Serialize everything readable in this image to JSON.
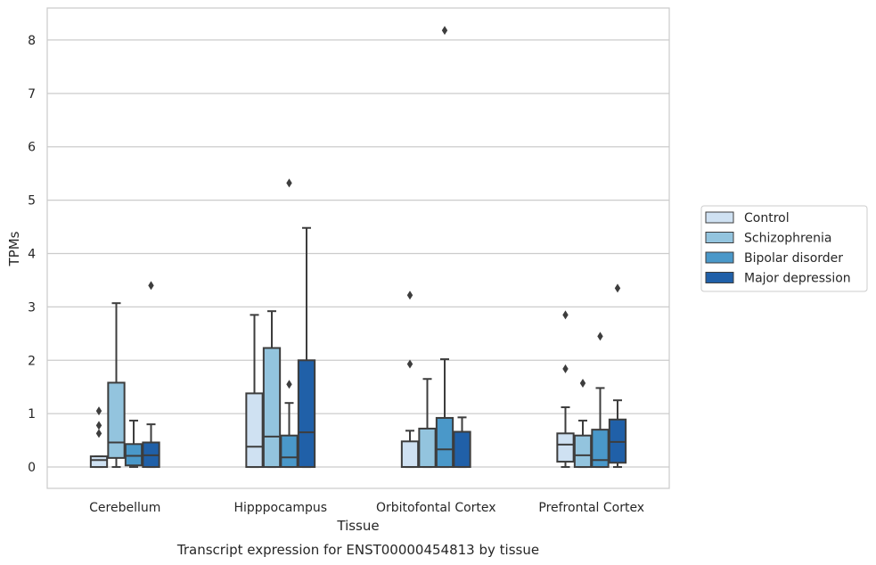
{
  "chart_data": {
    "type": "box",
    "title": "",
    "caption": "Transcript expression for ENST00000454813 by tissue",
    "xlabel": "Tissue",
    "ylabel": "TPMs",
    "ylim": [
      -0.4,
      8.6
    ],
    "yticks": [
      0,
      1,
      2,
      3,
      4,
      5,
      6,
      7,
      8
    ],
    "grid": "horizontal",
    "legend_position": "right",
    "categories": [
      "Cerebellum",
      "Hipppocampus",
      "Orbitofontal Cortex",
      "Prefrontal Cortex"
    ],
    "series": [
      {
        "name": "Control",
        "color": "#cfe1f2",
        "boxes": [
          {
            "whislo": 0.0,
            "q1": 0.0,
            "med": 0.13,
            "q3": 0.2,
            "whishi": 0.2,
            "fliers": [
              0.63,
              0.78,
              1.05
            ]
          },
          {
            "whislo": 0.0,
            "q1": 0.0,
            "med": 0.38,
            "q3": 1.38,
            "whishi": 2.85,
            "fliers": []
          },
          {
            "whislo": 0.0,
            "q1": 0.0,
            "med": 0.0,
            "q3": 0.48,
            "whishi": 0.68,
            "fliers": [
              1.93,
              3.22
            ]
          },
          {
            "whislo": 0.0,
            "q1": 0.1,
            "med": 0.42,
            "q3": 0.63,
            "whishi": 1.12,
            "fliers": [
              1.84,
              2.85
            ]
          }
        ]
      },
      {
        "name": "Schizophrenia",
        "color": "#93c4de",
        "boxes": [
          {
            "whislo": 0.0,
            "q1": 0.17,
            "med": 0.46,
            "q3": 1.58,
            "whishi": 3.07,
            "fliers": []
          },
          {
            "whislo": 0.0,
            "q1": 0.0,
            "med": 0.57,
            "q3": 2.23,
            "whishi": 2.92,
            "fliers": []
          },
          {
            "whislo": 0.0,
            "q1": 0.0,
            "med": 0.0,
            "q3": 0.72,
            "whishi": 1.65,
            "fliers": []
          },
          {
            "whislo": 0.0,
            "q1": 0.0,
            "med": 0.22,
            "q3": 0.59,
            "whishi": 0.87,
            "fliers": [
              1.57
            ]
          }
        ]
      },
      {
        "name": "Bipolar disorder",
        "color": "#4a98c9",
        "boxes": [
          {
            "whislo": 0.0,
            "q1": 0.03,
            "med": 0.21,
            "q3": 0.43,
            "whishi": 0.87,
            "fliers": []
          },
          {
            "whislo": 0.0,
            "q1": 0.0,
            "med": 0.18,
            "q3": 0.59,
            "whishi": 1.2,
            "fliers": [
              1.55,
              5.32
            ]
          },
          {
            "whislo": 0.0,
            "q1": 0.0,
            "med": 0.33,
            "q3": 0.92,
            "whishi": 2.02,
            "fliers": [
              8.18
            ]
          },
          {
            "whislo": 0.0,
            "q1": 0.0,
            "med": 0.13,
            "q3": 0.7,
            "whishi": 1.48,
            "fliers": [
              2.45
            ]
          }
        ]
      },
      {
        "name": "Major depression",
        "color": "#2060a8",
        "boxes": [
          {
            "whislo": 0.0,
            "q1": 0.0,
            "med": 0.22,
            "q3": 0.46,
            "whishi": 0.8,
            "fliers": [
              3.4
            ]
          },
          {
            "whislo": 0.0,
            "q1": 0.0,
            "med": 0.65,
            "q3": 2.0,
            "whishi": 4.48,
            "fliers": []
          },
          {
            "whislo": 0.0,
            "q1": 0.0,
            "med": 0.0,
            "q3": 0.66,
            "whishi": 0.93,
            "fliers": []
          },
          {
            "whislo": 0.0,
            "q1": 0.08,
            "med": 0.47,
            "q3": 0.89,
            "whishi": 1.25,
            "fliers": [
              3.35
            ]
          }
        ]
      }
    ]
  }
}
